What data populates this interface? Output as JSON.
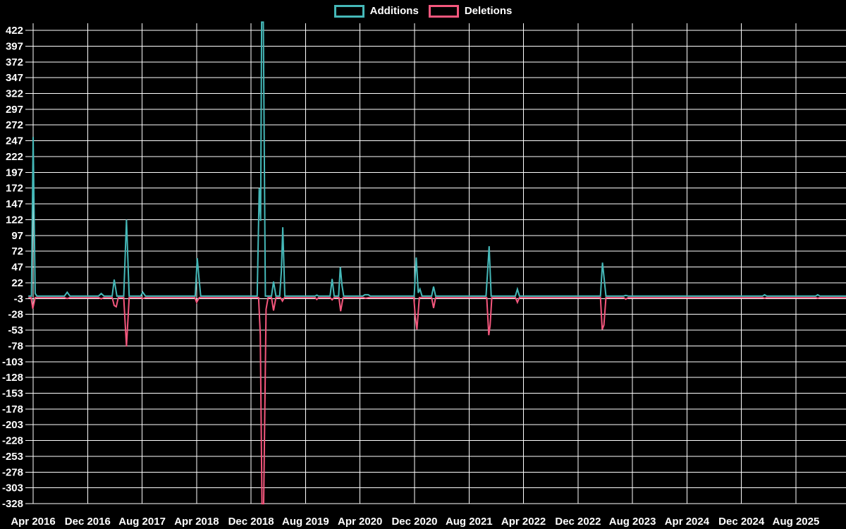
{
  "chart_data": {
    "type": "line",
    "title": "",
    "legend_position": "top-center",
    "grid": true,
    "colors": {
      "background": "#000000",
      "grid": "#ffffff",
      "text": "#ffffff"
    },
    "x_axis": {
      "start_label": "Apr 2016",
      "months_per_tick": 8,
      "ticks": [
        "Apr 2016",
        "Dec 2016",
        "Aug 2017",
        "Apr 2018",
        "Dec 2018",
        "Aug 2019",
        "Apr 2020",
        "Dec 2020",
        "Aug 2021",
        "Apr 2022",
        "Dec 2022",
        "Aug 2023",
        "Apr 2024",
        "Dec 2024",
        "Aug 2025"
      ]
    },
    "y_axis": {
      "tick_step": 25,
      "range": [
        -328,
        422
      ],
      "ticks": [
        422,
        397,
        372,
        347,
        322,
        297,
        272,
        247,
        222,
        197,
        172,
        147,
        122,
        97,
        72,
        47,
        22,
        -3,
        -28,
        -53,
        -78,
        -103,
        -128,
        -153,
        -178,
        -203,
        -228,
        -253,
        -278,
        -303,
        -328
      ]
    },
    "series": [
      {
        "name": "Additions",
        "color": "#45b8b8",
        "points": [
          [
            -0.7,
            1
          ],
          [
            -0.25,
            1
          ],
          [
            0.0,
            253
          ],
          [
            0.3,
            5
          ],
          [
            0.55,
            1
          ],
          [
            4.6,
            1
          ],
          [
            5.0,
            7
          ],
          [
            5.4,
            1
          ],
          [
            9.6,
            1
          ],
          [
            10.0,
            5
          ],
          [
            10.4,
            1
          ],
          [
            11.6,
            1
          ],
          [
            11.9,
            27
          ],
          [
            12.3,
            1
          ],
          [
            13.3,
            1
          ],
          [
            13.7,
            122
          ],
          [
            14.1,
            1
          ],
          [
            15.8,
            1
          ],
          [
            16.1,
            7
          ],
          [
            16.5,
            1
          ],
          [
            23.8,
            1
          ],
          [
            24.1,
            61
          ],
          [
            24.35,
            30
          ],
          [
            24.6,
            1
          ],
          [
            32.9,
            1
          ],
          [
            33.2,
            172
          ],
          [
            33.4,
            120
          ],
          [
            33.55,
            435
          ],
          [
            33.8,
            435
          ],
          [
            34.1,
            1
          ],
          [
            35.0,
            1
          ],
          [
            35.3,
            24
          ],
          [
            35.65,
            1
          ],
          [
            36.2,
            1
          ],
          [
            36.45,
            40
          ],
          [
            36.65,
            110
          ],
          [
            36.95,
            1
          ],
          [
            41.4,
            1
          ],
          [
            41.65,
            2.5
          ],
          [
            41.9,
            1
          ],
          [
            43.6,
            1
          ],
          [
            43.9,
            28
          ],
          [
            44.2,
            1
          ],
          [
            44.85,
            1
          ],
          [
            45.1,
            47
          ],
          [
            45.35,
            18
          ],
          [
            45.6,
            1
          ],
          [
            48.4,
            1
          ],
          [
            48.7,
            3
          ],
          [
            49.2,
            3
          ],
          [
            49.5,
            1
          ],
          [
            55.95,
            1
          ],
          [
            56.25,
            62
          ],
          [
            56.55,
            6
          ],
          [
            56.8,
            12
          ],
          [
            57.1,
            1
          ],
          [
            58.5,
            1
          ],
          [
            58.8,
            16
          ],
          [
            59.1,
            1
          ],
          [
            66.5,
            1
          ],
          [
            66.75,
            45
          ],
          [
            66.95,
            80
          ],
          [
            67.25,
            1
          ],
          [
            70.8,
            1
          ],
          [
            71.1,
            12
          ],
          [
            71.4,
            1
          ],
          [
            83.3,
            1
          ],
          [
            83.6,
            54
          ],
          [
            83.85,
            28
          ],
          [
            84.1,
            1
          ],
          [
            86.7,
            1
          ],
          [
            87.0,
            2
          ],
          [
            87.4,
            1
          ],
          [
            107.1,
            1
          ],
          [
            107.4,
            3
          ],
          [
            107.7,
            1
          ],
          [
            114.9,
            1
          ],
          [
            115.2,
            3
          ],
          [
            115.5,
            1
          ],
          [
            119.4,
            1
          ]
        ]
      },
      {
        "name": "Deletions",
        "color": "#f4577d",
        "points": [
          [
            -0.7,
            -1.5
          ],
          [
            -0.3,
            -1.5
          ],
          [
            -0.05,
            -19
          ],
          [
            0.3,
            -1.5
          ],
          [
            4.6,
            -1.5
          ],
          [
            5.0,
            -3
          ],
          [
            5.4,
            -1.5
          ],
          [
            9.6,
            -1.5
          ],
          [
            10.0,
            -3.5
          ],
          [
            10.4,
            -1.5
          ],
          [
            11.6,
            -1.5
          ],
          [
            11.9,
            -14
          ],
          [
            12.2,
            -16
          ],
          [
            12.5,
            -1.5
          ],
          [
            13.3,
            -1.5
          ],
          [
            13.7,
            -79
          ],
          [
            14.1,
            -1.5
          ],
          [
            15.8,
            -1.5
          ],
          [
            16.1,
            -3
          ],
          [
            16.5,
            -1.5
          ],
          [
            23.75,
            -1.5
          ],
          [
            24.0,
            -9
          ],
          [
            24.4,
            -1.5
          ],
          [
            33.1,
            -1.5
          ],
          [
            33.35,
            -60
          ],
          [
            33.6,
            -328
          ],
          [
            33.85,
            -328
          ],
          [
            34.2,
            -20
          ],
          [
            34.5,
            -1.5
          ],
          [
            35.0,
            -1.5
          ],
          [
            35.3,
            -22
          ],
          [
            35.65,
            -1.5
          ],
          [
            36.3,
            -1.5
          ],
          [
            36.6,
            -7
          ],
          [
            36.9,
            -1.5
          ],
          [
            41.4,
            -1.5
          ],
          [
            41.65,
            -4.5
          ],
          [
            41.9,
            -1.5
          ],
          [
            43.6,
            -1.5
          ],
          [
            43.9,
            -5
          ],
          [
            44.2,
            -1.5
          ],
          [
            44.9,
            -1.5
          ],
          [
            45.15,
            -23
          ],
          [
            45.5,
            -1.5
          ],
          [
            48.5,
            -1.5
          ],
          [
            48.8,
            -2.5
          ],
          [
            49.3,
            -1.5
          ],
          [
            55.9,
            -1.5
          ],
          [
            56.1,
            -31
          ],
          [
            56.35,
            -52
          ],
          [
            56.7,
            -1.5
          ],
          [
            58.5,
            -1.5
          ],
          [
            58.8,
            -18
          ],
          [
            59.1,
            -1.5
          ],
          [
            66.6,
            -1.5
          ],
          [
            66.9,
            -61
          ],
          [
            67.1,
            -45
          ],
          [
            67.35,
            -1.5
          ],
          [
            70.8,
            -1.5
          ],
          [
            71.1,
            -9
          ],
          [
            71.4,
            -1.5
          ],
          [
            83.3,
            -1.5
          ],
          [
            83.55,
            -52
          ],
          [
            83.8,
            -45
          ],
          [
            84.1,
            -1.5
          ],
          [
            86.7,
            -1.5
          ],
          [
            87.0,
            -4
          ],
          [
            87.4,
            -1.5
          ],
          [
            107.1,
            -1.5
          ],
          [
            107.4,
            -2.5
          ],
          [
            107.7,
            -1.5
          ],
          [
            114.9,
            -1.5
          ],
          [
            115.2,
            -2.5
          ],
          [
            115.5,
            -1.5
          ],
          [
            119.4,
            -1.5
          ]
        ]
      }
    ]
  }
}
